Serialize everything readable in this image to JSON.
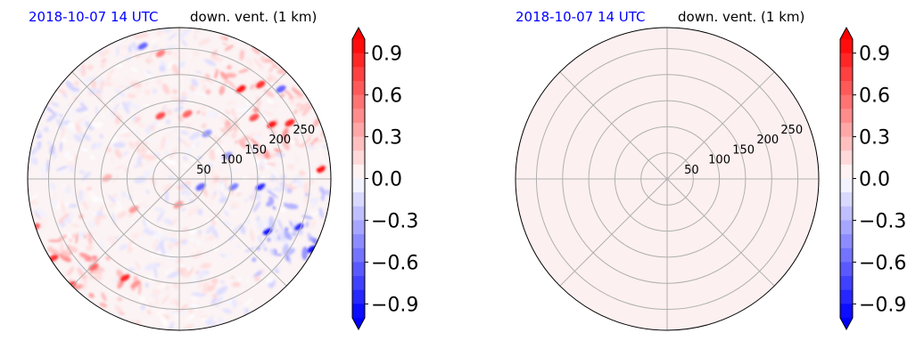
{
  "chart_data": [
    {
      "type": "heatmap",
      "projection": "polar",
      "title_left": "2018-10-07 14 UTC",
      "title_right": "down. vent. (1 km)",
      "radial_ticks": [
        50,
        100,
        150,
        200,
        250
      ],
      "rlim": [
        0,
        290
      ],
      "angular_gridlines_deg": [
        0,
        45,
        90,
        135,
        180,
        225,
        270,
        315
      ],
      "grid": true,
      "field": "mixed positive/negative values; strong positive patches in the north-east and along the south-west rim, negative streaks in the east",
      "colorbar": {
        "colormap": "bwr",
        "range": [
          -1.0,
          1.0
        ],
        "extend": "both",
        "ticks": [
          "0.9",
          "0.6",
          "0.3",
          "0.0",
          "−0.3",
          "−0.6",
          "−0.9"
        ]
      }
    },
    {
      "type": "heatmap",
      "projection": "polar",
      "title_left": "2018-10-07 14 UTC",
      "title_right": "down. vent. (1 km)",
      "radial_ticks": [
        50,
        100,
        150,
        200,
        250
      ],
      "rlim": [
        0,
        290
      ],
      "angular_gridlines_deg": [
        0,
        45,
        90,
        135,
        180,
        225,
        270,
        315
      ],
      "grid": true,
      "field": "nearly uniform, slightly positive (about 0.05) everywhere",
      "colorbar": {
        "colormap": "bwr",
        "range": [
          -1.0,
          1.0
        ],
        "extend": "both",
        "ticks": [
          "0.9",
          "0.6",
          "0.3",
          "0.0",
          "−0.3",
          "−0.6",
          "−0.9"
        ]
      }
    }
  ],
  "colors": {
    "title_date": "#0000ff",
    "title_var": "#000000",
    "grid": "#b0b0b0",
    "uniform_field": "#fdf0f0",
    "positive": "#ff0000",
    "negative": "#0000ff"
  }
}
